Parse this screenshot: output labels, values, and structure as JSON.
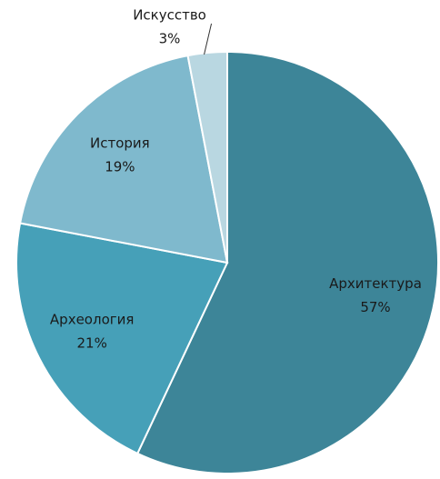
{
  "chart_data": {
    "type": "pie",
    "categories": [
      "Архитектура",
      "Археология",
      "История",
      "Искусство"
    ],
    "values": [
      57,
      21,
      19,
      3
    ],
    "value_labels": [
      "57%",
      "21%",
      "19%",
      "3%"
    ],
    "colors": [
      "#3d8598",
      "#46a0b8",
      "#7fb9cd",
      "#b9d7e1"
    ]
  }
}
